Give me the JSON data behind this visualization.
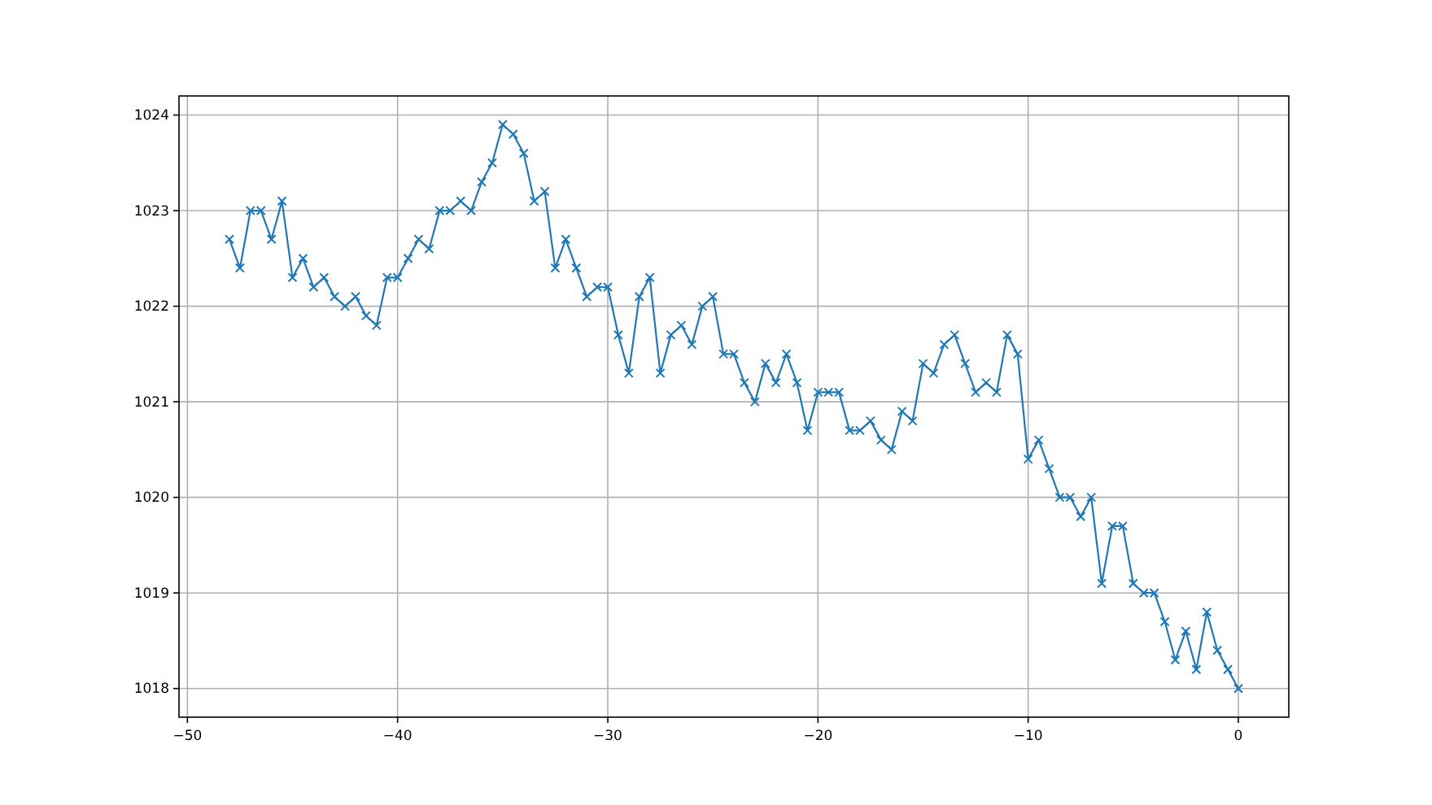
{
  "chart_data": {
    "type": "line",
    "marker": "cross",
    "grid": true,
    "x": [
      -48,
      -47.5,
      -47,
      -46.5,
      -46,
      -45.5,
      -45,
      -44.5,
      -44,
      -43.5,
      -43,
      -42.5,
      -42,
      -41.5,
      -41,
      -40.5,
      -40,
      -39.5,
      -39,
      -38.5,
      -38,
      -37.5,
      -37,
      -36.5,
      -36,
      -35.5,
      -35,
      -34.5,
      -34,
      -33.5,
      -33,
      -32.5,
      -32,
      -31.5,
      -31,
      -30.5,
      -30,
      -29.5,
      -29,
      -28.5,
      -28,
      -27.5,
      -27,
      -26.5,
      -26,
      -25.5,
      -25,
      -24.5,
      -24,
      -23.5,
      -23,
      -22.5,
      -22,
      -21.5,
      -21,
      -20.5,
      -20,
      -19.5,
      -19,
      -18.5,
      -18,
      -17.5,
      -17,
      -16.5,
      -16,
      -15.5,
      -15,
      -14.5,
      -14,
      -13.5,
      -13,
      -12.5,
      -12,
      -11.5,
      -11,
      -10.5,
      -10,
      -9.5,
      -9,
      -8.5,
      -8,
      -7.5,
      -7,
      -6.5,
      -6,
      -5.5,
      -5,
      -4.5,
      -4,
      -3.5,
      -3,
      -2.5,
      -2,
      -1.5,
      -1,
      -0.5,
      0
    ],
    "series": [
      {
        "color": "#1f77b4",
        "values": [
          1022.7,
          1022.4,
          1023.0,
          1023.0,
          1022.7,
          1023.1,
          1022.3,
          1022.5,
          1022.2,
          1022.3,
          1022.1,
          1022.0,
          1022.1,
          1021.9,
          1021.8,
          1022.3,
          1022.3,
          1022.5,
          1022.7,
          1022.6,
          1023.0,
          1023.0,
          1023.1,
          1023.0,
          1023.3,
          1023.5,
          1023.9,
          1023.8,
          1023.6,
          1023.1,
          1023.2,
          1022.4,
          1022.7,
          1022.4,
          1022.1,
          1022.2,
          1022.2,
          1021.7,
          1021.3,
          1022.1,
          1022.3,
          1021.3,
          1021.7,
          1021.8,
          1021.6,
          1022.0,
          1022.1,
          1021.5,
          1021.5,
          1021.2,
          1021.0,
          1021.4,
          1021.2,
          1021.5,
          1021.2,
          1020.7,
          1021.1,
          1021.1,
          1021.1,
          1020.7,
          1020.7,
          1020.8,
          1020.6,
          1020.5,
          1020.9,
          1020.8,
          1021.4,
          1021.3,
          1021.6,
          1021.7,
          1021.4,
          1021.1,
          1021.2,
          1021.1,
          1021.7,
          1021.5,
          1020.4,
          1020.6,
          1020.3,
          1020.0,
          1020.0,
          1019.8,
          1020.0,
          1019.1,
          1019.7,
          1019.7,
          1019.1,
          1019.0,
          1019.0,
          1018.7,
          1018.3,
          1018.6,
          1018.2,
          1018.8,
          1018.4,
          1018.2,
          1018.0
        ]
      }
    ],
    "xlim": [
      -50.4,
      2.4
    ],
    "xticks": [
      -50,
      -40,
      -30,
      -20,
      -10,
      0
    ],
    "ylim": [
      1017.7,
      1024.2
    ],
    "yticks": [
      1018,
      1019,
      1020,
      1021,
      1022,
      1023,
      1024
    ]
  }
}
